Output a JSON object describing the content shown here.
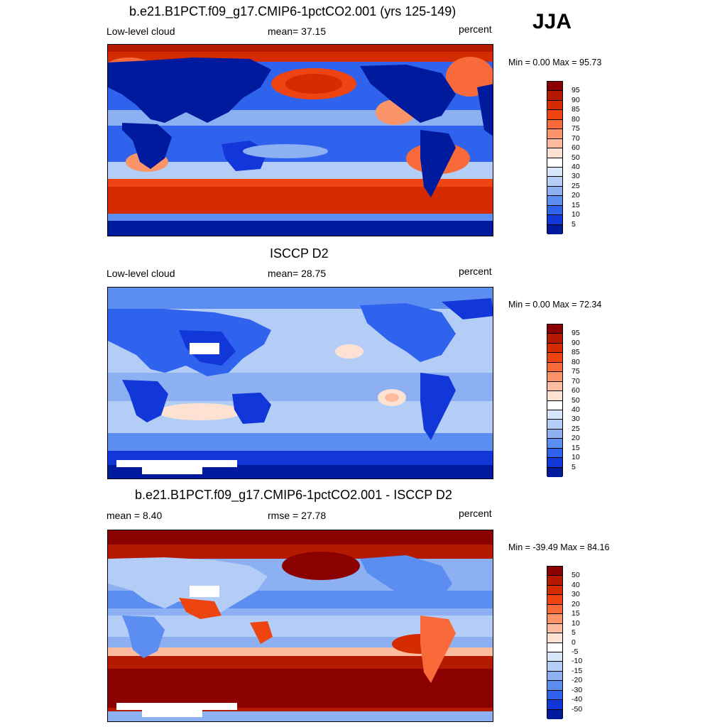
{
  "season": "JJA",
  "panels": [
    {
      "title": "b.e21.B1PCT.f09_g17.CMIP6-1pctCO2.001 (yrs 125-149)",
      "left": "Low-level cloud",
      "center": "mean=  37.15",
      "right": "percent",
      "minmax": "Min =   0.00 Max =  95.73",
      "colorbar_labels": [
        "95",
        "90",
        "85",
        "80",
        "75",
        "70",
        "60",
        "50",
        "40",
        "30",
        "25",
        "20",
        "15",
        "10",
        "5"
      ],
      "colorbar_colors": [
        "#8b0000",
        "#b51a00",
        "#d42b00",
        "#ee4411",
        "#f96a3a",
        "#fb9469",
        "#fdbca0",
        "#fde2d4",
        "#ffffff",
        "#d8e6fb",
        "#b3cdf6",
        "#8cb0f1",
        "#5b8ef0",
        "#2f63ee",
        "#1237d8",
        "#001a9e"
      ]
    },
    {
      "title": "ISCCP D2",
      "left": "Low-level cloud",
      "center": "mean=  28.75",
      "right": "percent",
      "minmax": "Min =   0.00 Max =  72.34",
      "colorbar_labels": [
        "95",
        "90",
        "85",
        "80",
        "75",
        "70",
        "60",
        "50",
        "40",
        "30",
        "25",
        "20",
        "15",
        "10",
        "5"
      ],
      "colorbar_colors": [
        "#8b0000",
        "#b51a00",
        "#d42b00",
        "#ee4411",
        "#f96a3a",
        "#fb9469",
        "#fdbca0",
        "#fde2d4",
        "#ffffff",
        "#d8e6fb",
        "#b3cdf6",
        "#8cb0f1",
        "#5b8ef0",
        "#2f63ee",
        "#1237d8",
        "#001a9e"
      ]
    },
    {
      "title": "b.e21.B1PCT.f09_g17.CMIP6-1pctCO2.001 - ISCCP D2",
      "left": "mean =   8.40",
      "center": "rmse =  27.78",
      "right": "percent",
      "minmax": "Min = -39.49 Max =  84.16",
      "colorbar_labels": [
        "50",
        "40",
        "30",
        "20",
        "15",
        "10",
        "5",
        "0",
        "-5",
        "-10",
        "-15",
        "-20",
        "-30",
        "-40",
        "-50"
      ],
      "colorbar_colors": [
        "#8b0000",
        "#b51a00",
        "#d42b00",
        "#ee4411",
        "#f96a3a",
        "#fb9469",
        "#fdbca0",
        "#fde2d4",
        "#ffffff",
        "#d8e6fb",
        "#b3cdf6",
        "#8cb0f1",
        "#5b8ef0",
        "#2f63ee",
        "#1237d8",
        "#001a9e"
      ]
    }
  ],
  "chart_data": [
    {
      "type": "heatmap",
      "title": "b.e21.B1PCT.f09_g17.CMIP6-1pctCO2.001 (yrs 125-149)",
      "variable": "Low-level cloud",
      "units": "percent",
      "season": "JJA",
      "mean": 37.15,
      "min": 0.0,
      "max": 95.73,
      "levels": [
        5,
        10,
        15,
        20,
        25,
        30,
        40,
        50,
        60,
        70,
        75,
        80,
        85,
        90,
        95
      ]
    },
    {
      "type": "heatmap",
      "title": "ISCCP D2",
      "variable": "Low-level cloud",
      "units": "percent",
      "mean": 28.75,
      "min": 0.0,
      "max": 72.34,
      "levels": [
        5,
        10,
        15,
        20,
        25,
        30,
        40,
        50,
        60,
        70,
        75,
        80,
        85,
        90,
        95
      ]
    },
    {
      "type": "heatmap",
      "title": "b.e21.B1PCT.f09_g17.CMIP6-1pctCO2.001 - ISCCP D2",
      "units": "percent",
      "mean": 8.4,
      "rmse": 27.78,
      "min": -39.49,
      "max": 84.16,
      "levels": [
        -50,
        -40,
        -30,
        -20,
        -15,
        -10,
        -5,
        0,
        5,
        10,
        15,
        20,
        30,
        40,
        50
      ]
    }
  ]
}
